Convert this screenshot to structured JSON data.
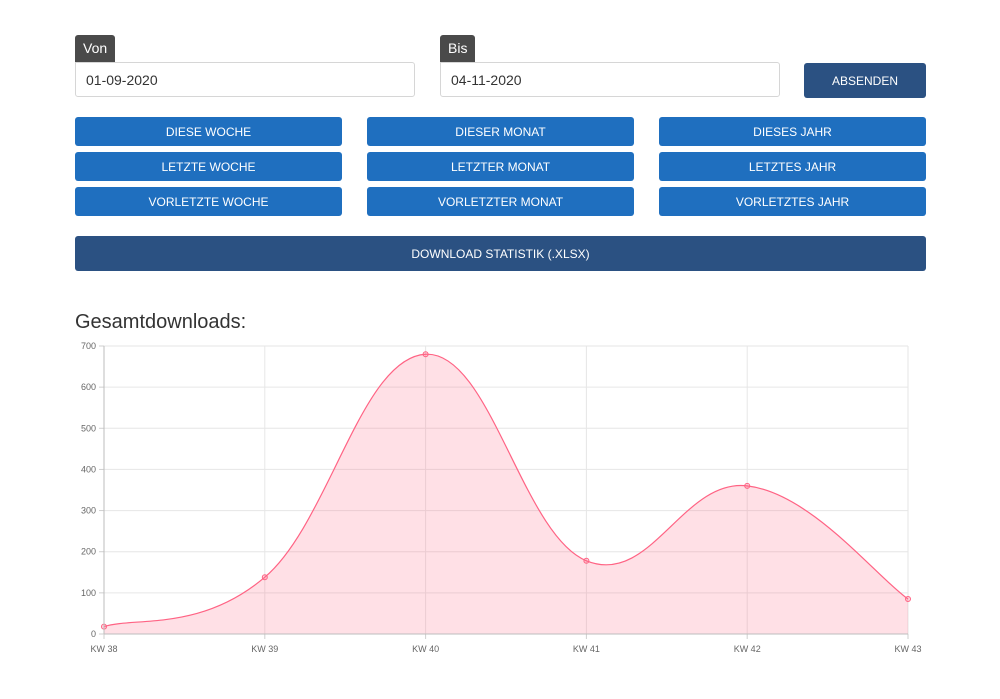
{
  "filters": {
    "from_label": "Von",
    "from_value": "01-09-2020",
    "to_label": "Bis",
    "to_value": "04-11-2020",
    "submit_label": "ABSENDEN"
  },
  "quick_ranges": [
    {
      "label": "DIESE WOCHE"
    },
    {
      "label": "DIESER MONAT"
    },
    {
      "label": "DIESES JAHR"
    },
    {
      "label": "LETZTE WOCHE"
    },
    {
      "label": "LETZTER MONAT"
    },
    {
      "label": "LETZTES JAHR"
    },
    {
      "label": "VORLETZTE WOCHE"
    },
    {
      "label": "VORLETZTER MONAT"
    },
    {
      "label": "VORLETZTES JAHR"
    }
  ],
  "download_label": "DOWNLOAD STATISTIK (.XLSX)",
  "colors": {
    "button_blue": "#1f6fbf",
    "button_dark": "#2b5182",
    "series_line": "#ff6384",
    "series_fill": "rgba(255,99,132,0.2)"
  },
  "chart_data": {
    "type": "area",
    "title": "Gesamtdownloads:",
    "categories": [
      "KW 38",
      "KW 39",
      "KW 40",
      "KW 41",
      "KW 42",
      "KW 43"
    ],
    "series": [
      {
        "values": [
          18,
          138,
          680,
          178,
          360,
          85
        ]
      }
    ],
    "ylim": [
      0,
      700
    ],
    "yticks": [
      "0",
      "100",
      "200",
      "300",
      "400",
      "500",
      "600",
      "700"
    ],
    "grid": true,
    "xlabel": "",
    "ylabel": ""
  }
}
